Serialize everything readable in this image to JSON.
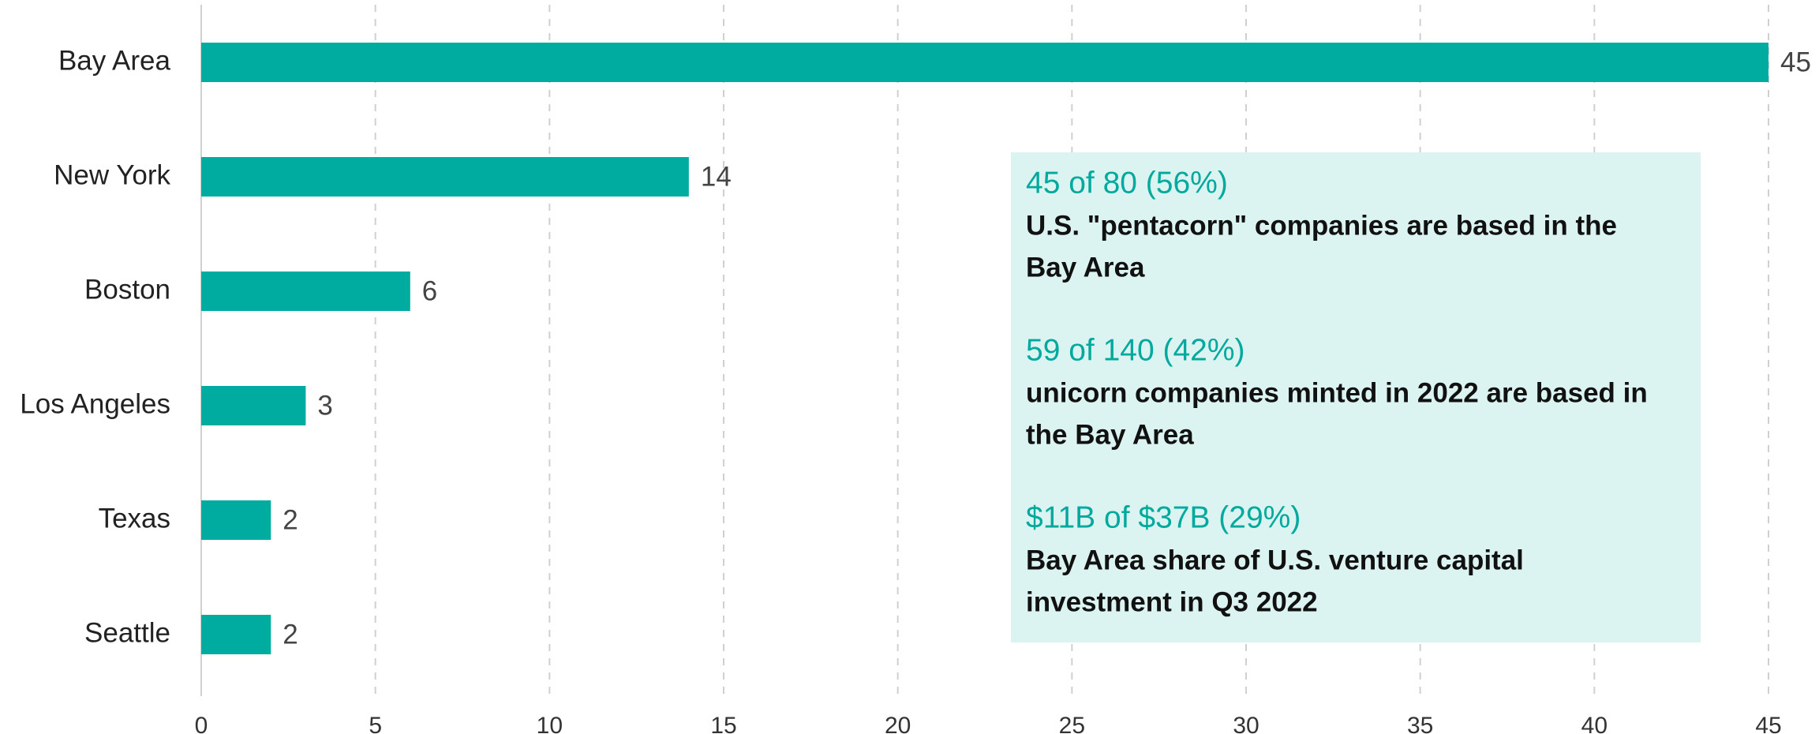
{
  "chart_data": {
    "type": "bar",
    "orientation": "horizontal",
    "categories": [
      "Bay Area",
      "New York",
      "Boston",
      "Los Angeles",
      "Texas",
      "Seattle"
    ],
    "values": [
      45,
      14,
      6,
      3,
      2,
      2
    ],
    "color": "#00ab9f",
    "xlim": [
      0,
      45
    ],
    "xticks": [
      0,
      5,
      10,
      15,
      20,
      25,
      30,
      35,
      40,
      45
    ],
    "grid": true,
    "annotations": [
      {
        "headline": "45 of 80 (56%)",
        "lines": [
          "U.S. \"pentacorn\" companies are based in the",
          "Bay Area"
        ]
      },
      {
        "headline": "59 of 140 (42%)",
        "lines": [
          "unicorn companies minted in 2022 are based in",
          "the Bay Area"
        ]
      },
      {
        "headline": "$11B of $37B (29%)",
        "lines": [
          "Bay Area share of U.S. venture capital",
          "investment in Q3 2022"
        ]
      }
    ]
  }
}
